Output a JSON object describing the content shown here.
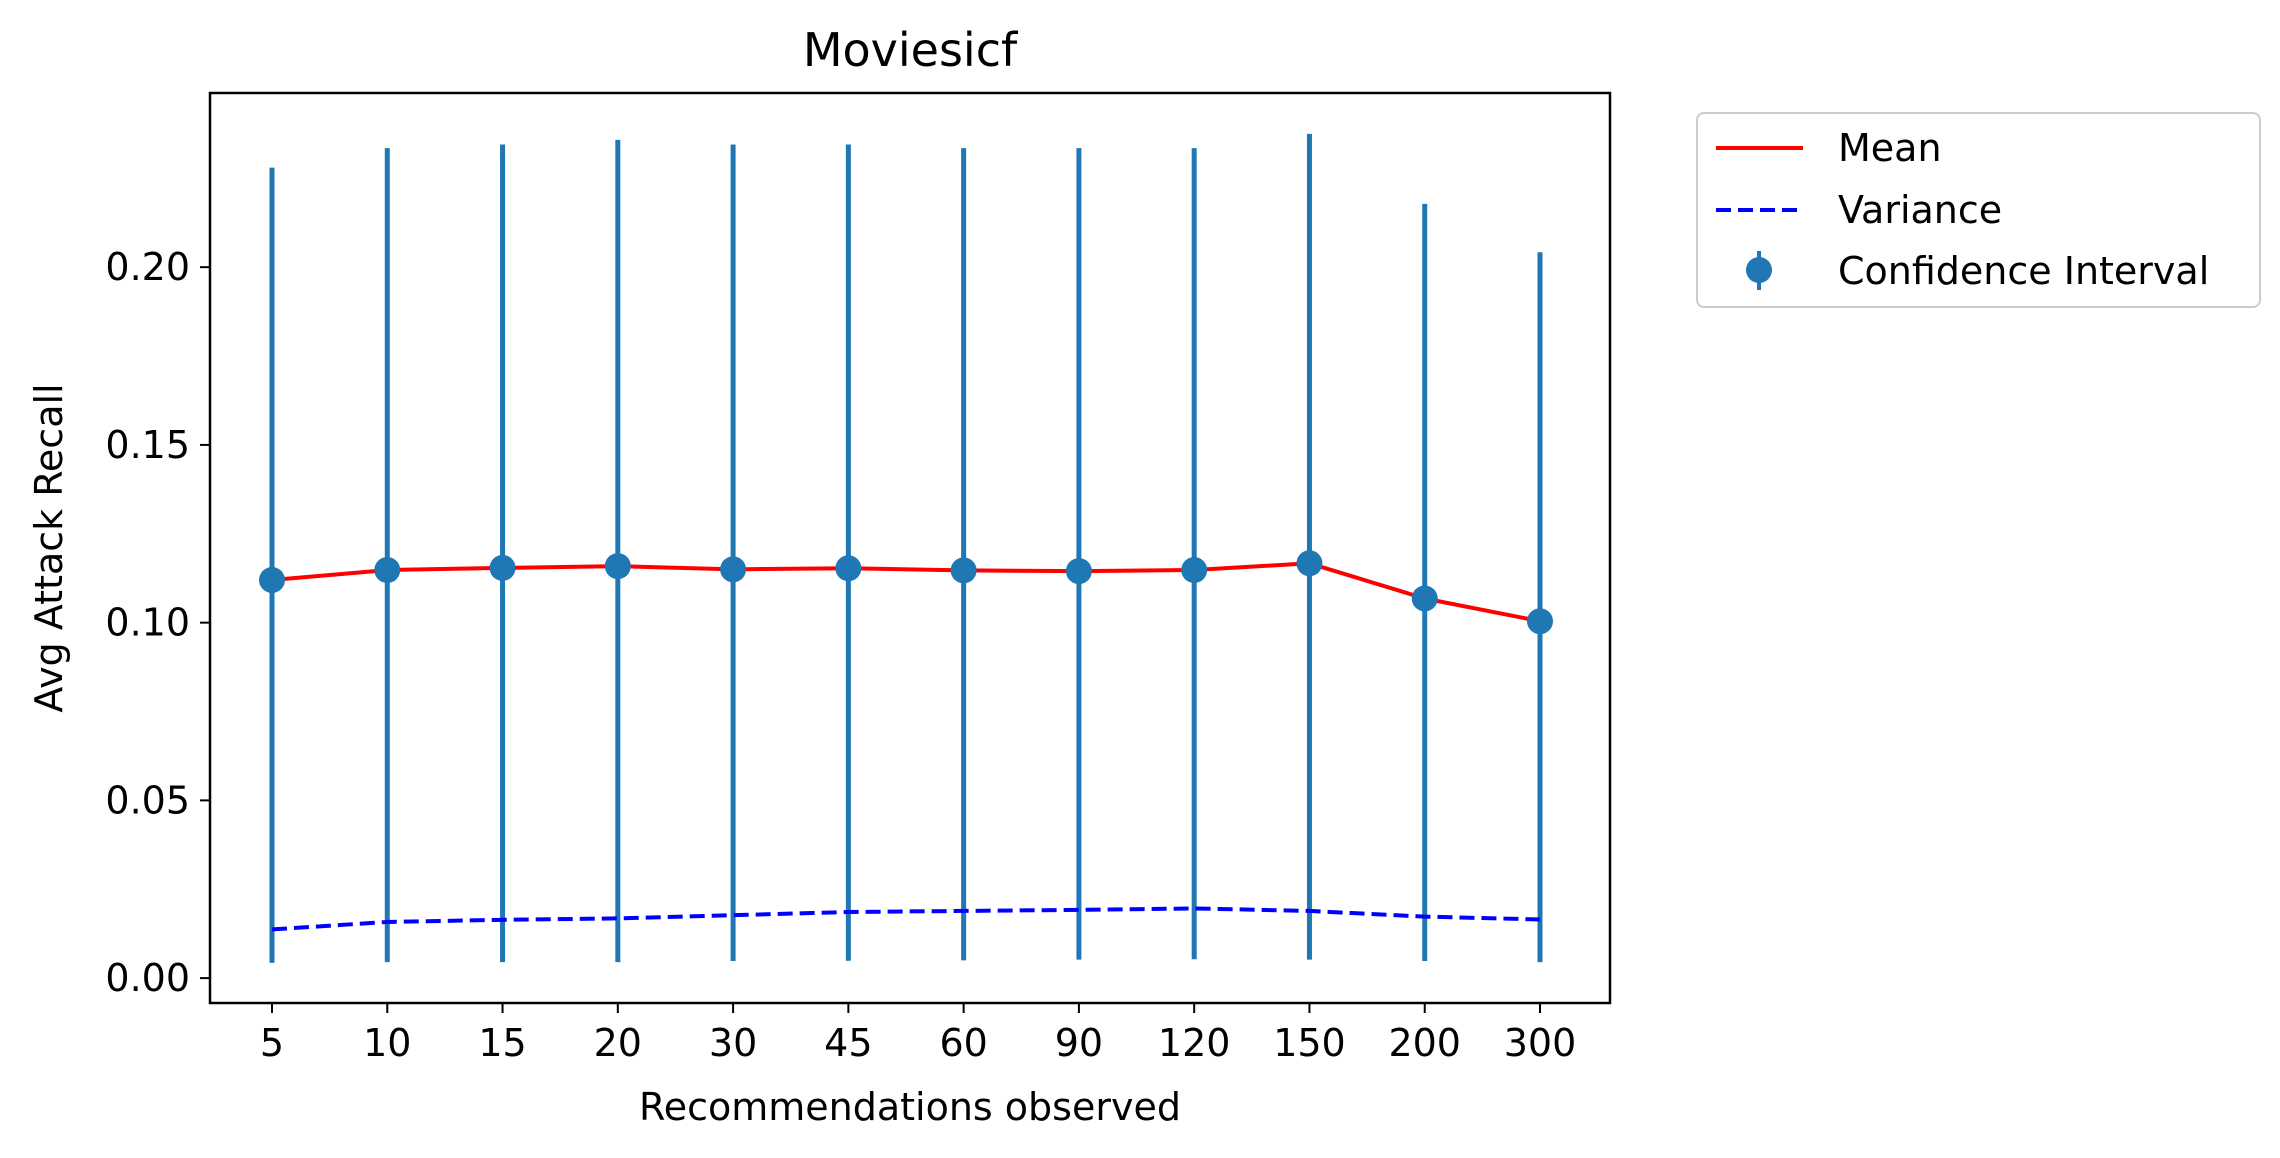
{
  "chart_data": {
    "type": "line",
    "title": "Moviesicf",
    "xlabel": "Recommendations observed",
    "ylabel": "Avg Attack Recall",
    "categories": [
      "5",
      "10",
      "15",
      "20",
      "30",
      "45",
      "60",
      "90",
      "120",
      "150",
      "200",
      "300"
    ],
    "ylim": [
      -0.007,
      0.249
    ],
    "yticks": [
      0.0,
      0.05,
      0.1,
      0.15,
      0.2
    ],
    "ytick_labels": [
      "0.00",
      "0.05",
      "0.10",
      "0.15",
      "0.20"
    ],
    "grid": false,
    "legend_position": "outside-top-right",
    "series": [
      {
        "name": "Mean",
        "style": "solid",
        "color": "#ff0000",
        "values": [
          0.112,
          0.1148,
          0.1154,
          0.1159,
          0.115,
          0.1153,
          0.1147,
          0.1145,
          0.1148,
          0.1167,
          0.1068,
          0.1004
        ]
      },
      {
        "name": "Variance",
        "style": "dashed",
        "color": "#0000ff",
        "values": [
          0.0137,
          0.0158,
          0.0164,
          0.0168,
          0.0177,
          0.0186,
          0.0189,
          0.0192,
          0.0196,
          0.0189,
          0.0173,
          0.0165
        ]
      },
      {
        "name": "Confidence Interval",
        "style": "errorbar",
        "color": "#1f77b4",
        "values": [
          0.112,
          0.1148,
          0.1154,
          0.1159,
          0.115,
          0.1153,
          0.1147,
          0.1145,
          0.1148,
          0.1167,
          0.1068,
          0.1004
        ],
        "lower": [
          0.0043,
          0.0045,
          0.0045,
          0.0045,
          0.0048,
          0.0049,
          0.005,
          0.0052,
          0.0053,
          0.0052,
          0.0048,
          0.0045
        ],
        "upper": [
          0.228,
          0.2335,
          0.2345,
          0.2358,
          0.2345,
          0.2345,
          0.2335,
          0.2335,
          0.2335,
          0.2375,
          0.2178,
          0.2042
        ]
      }
    ]
  }
}
